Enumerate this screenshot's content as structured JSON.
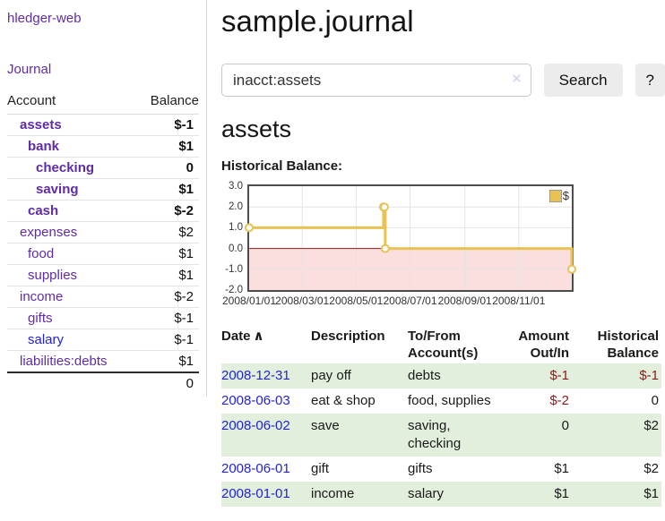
{
  "app": {
    "brand": "hledger-web",
    "nav_journal": "Journal"
  },
  "header": {
    "title": "sample.journal"
  },
  "search": {
    "value": "inacct:assets",
    "clear_icon": "✕",
    "button": "Search",
    "help_button": "?"
  },
  "account_page": {
    "title": "assets",
    "chart_label": "Historical Balance:"
  },
  "sidebar": {
    "accounts_header": {
      "account": "Account",
      "balance": "Balance"
    },
    "accounts": [
      {
        "name": "assets",
        "balance": "$-1",
        "indent": 1,
        "bold": true,
        "neg": "strong",
        "link": "purple"
      },
      {
        "name": "bank",
        "balance": "$1",
        "indent": 2,
        "bold": true,
        "neg": "none",
        "link": "purple"
      },
      {
        "name": "checking",
        "balance": "0",
        "indent": 3,
        "bold": true,
        "neg": "none",
        "link": "purple"
      },
      {
        "name": "saving",
        "balance": "$1",
        "indent": 3,
        "bold": true,
        "neg": "none",
        "link": "purple"
      },
      {
        "name": "cash",
        "balance": "$-2",
        "indent": 2,
        "bold": true,
        "neg": "strong",
        "link": "purple"
      },
      {
        "name": "expenses",
        "balance": "$2",
        "indent": 1,
        "bold": false,
        "neg": "none",
        "link": "purple"
      },
      {
        "name": "food",
        "balance": "$1",
        "indent": 2,
        "bold": false,
        "neg": "none",
        "link": "purple"
      },
      {
        "name": "supplies",
        "balance": "$1",
        "indent": 2,
        "bold": false,
        "neg": "none",
        "link": "purple"
      },
      {
        "name": "income",
        "balance": "$-2",
        "indent": 1,
        "bold": false,
        "neg": "faded",
        "link": "purple"
      },
      {
        "name": "gifts",
        "balance": "$-1",
        "indent": 2,
        "bold": false,
        "neg": "faded",
        "link": "purple"
      },
      {
        "name": "salary",
        "balance": "$-1",
        "indent": 2,
        "bold": false,
        "neg": "faded",
        "link": "blue"
      },
      {
        "name": "liabilities:debts",
        "balance": "$1",
        "indent": 1,
        "bold": false,
        "neg": "none",
        "link": "purple"
      }
    ],
    "total": "0"
  },
  "chart_data": {
    "type": "line",
    "step": true,
    "title": "Historical Balance:",
    "x_tick_labels": [
      "2008/01/01",
      "2008/03/01",
      "2008/05/01",
      "2008/07/01",
      "2008/09/01",
      "2008/11/01"
    ],
    "x_tick_days": [
      0,
      60,
      121,
      182,
      244,
      305
    ],
    "x_range_days": [
      0,
      365
    ],
    "y_ticks": [
      3.0,
      2.0,
      1.0,
      0.0,
      -1.0,
      -2.0
    ],
    "ylim": [
      -2,
      3
    ],
    "series": [
      {
        "name": "$",
        "color": "#e8c254",
        "dates": [
          "2008-01-01",
          "2008-06-01",
          "2008-06-02",
          "2008-06-03",
          "2008-12-31"
        ],
        "points": [
          [
            0,
            1
          ],
          [
            152,
            2
          ],
          [
            153,
            2
          ],
          [
            154,
            0
          ],
          [
            365,
            -1
          ]
        ]
      }
    ],
    "legend": {
      "label": "$",
      "position": "top-right"
    },
    "colors": {
      "grid": "#e4e4e4",
      "negative_region": "#fbdede",
      "zero_line": "#9b1c1c",
      "border": "#4d4d4d",
      "marker_fill": "#ffffff"
    }
  },
  "register": {
    "columns": [
      "Date",
      "Description",
      "To/From Account(s)",
      "Amount Out/In",
      "Historical Balance"
    ],
    "sort_icon": "∧",
    "rows": [
      {
        "date": "2008-12-31",
        "description": "pay off",
        "accounts": "debts",
        "amount": "$-1",
        "amount_neg": true,
        "balance": "$-1",
        "balance_neg": true
      },
      {
        "date": "2008-06-03",
        "description": "eat & shop",
        "accounts": "food, supplies",
        "amount": "$-2",
        "amount_neg": true,
        "balance": "0",
        "balance_neg": false
      },
      {
        "date": "2008-06-02",
        "description": "save",
        "accounts": "saving, checking",
        "amount": "0",
        "amount_neg": false,
        "balance": "$2",
        "balance_neg": false
      },
      {
        "date": "2008-06-01",
        "description": "gift",
        "accounts": "gifts",
        "amount": "$1",
        "amount_neg": false,
        "balance": "$2",
        "balance_neg": false
      },
      {
        "date": "2008-01-01",
        "description": "income",
        "accounts": "salary",
        "amount": "$1",
        "amount_neg": false,
        "balance": "$1",
        "balance_neg": false
      }
    ]
  },
  "theme": {
    "link_purple": "#5f2ca8",
    "link_blue": "#2323d4",
    "negative_strong": "#8b1a1a",
    "negative_faded": "#bc8f8f",
    "row_stripe_green": "#e1efdc",
    "button_gray": "#ececec"
  }
}
